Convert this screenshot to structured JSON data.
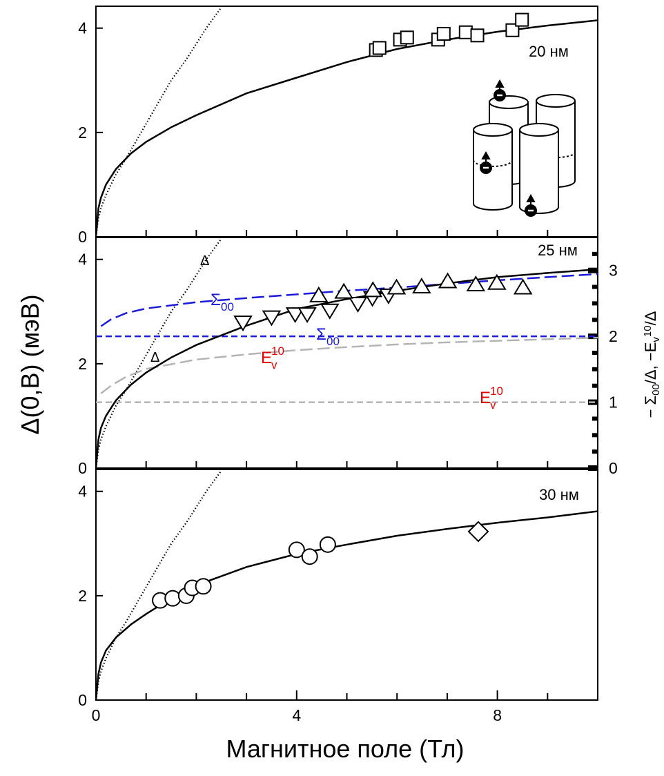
{
  "chart_data": [
    {
      "type": "line",
      "panel_label": "20 нм",
      "xlim": [
        0,
        10
      ],
      "xminor": [
        1,
        2,
        3,
        4,
        5,
        6,
        7,
        8,
        9
      ],
      "ylim": [
        0,
        4.42
      ],
      "yticks": [
        0,
        2,
        4
      ],
      "series": [
        {
          "style": "dotted",
          "color": "#000000",
          "x": [
            0,
            0.05,
            0.1,
            0.2,
            0.4,
            0.6,
            0.9,
            1.2,
            1.5,
            1.8,
            2.2,
            2.5
          ],
          "values": [
            0,
            0.35,
            0.55,
            0.8,
            1.2,
            1.5,
            2.0,
            2.5,
            3.0,
            3.4,
            4.0,
            4.4
          ]
        },
        {
          "style": "solid",
          "color": "#000000",
          "x": [
            0,
            0.05,
            0.1,
            0.2,
            0.4,
            0.7,
            1,
            1.5,
            2,
            3,
            4,
            5,
            6,
            7,
            8,
            9,
            10
          ],
          "values": [
            0,
            0.55,
            0.75,
            1.0,
            1.3,
            1.6,
            1.82,
            2.1,
            2.33,
            2.75,
            3.05,
            3.35,
            3.6,
            3.78,
            3.93,
            4.05,
            4.15
          ]
        },
        {
          "marker": "square",
          "color": "#000000",
          "x": [
            5.58,
            5.65,
            6.06,
            6.2,
            6.82,
            6.93,
            7.37,
            7.6,
            8.3,
            8.49
          ],
          "values": [
            3.58,
            3.62,
            3.78,
            3.82,
            3.78,
            3.89,
            3.92,
            3.86,
            3.96,
            4.16
          ]
        }
      ]
    },
    {
      "type": "line",
      "panel_label": "25 нм",
      "ylabel": "Δ(0,B) (мэВ)",
      "xlim": [
        0,
        10
      ],
      "xminor": [
        1,
        2,
        3,
        4,
        5,
        6,
        7,
        8,
        9
      ],
      "ylim": [
        0,
        4.42
      ],
      "yticks": [
        0,
        2,
        4
      ],
      "y2lim": [
        0,
        3.5
      ],
      "y2ticks": [
        0,
        1,
        2,
        3
      ],
      "y2minor": [
        0.25,
        0.5,
        0.75,
        1.25,
        1.5,
        1.75,
        2.25,
        2.5,
        2.75,
        3.25
      ],
      "y2label": [
        {
          "text": "− Σ"
        },
        {
          "sub": "00"
        },
        {
          "text": "/Δ, −E"
        },
        {
          "sub": "v"
        },
        {
          "sup": "10"
        },
        {
          "text": "/Δ"
        }
      ],
      "series": [
        {
          "style": "dotted",
          "color": "#000000",
          "x": [
            0,
            0.05,
            0.1,
            0.2,
            0.4,
            0.6,
            0.9,
            1.2,
            1.5,
            1.8,
            2.2,
            2.5
          ],
          "values": [
            0,
            0.35,
            0.55,
            0.8,
            1.2,
            1.5,
            2.0,
            2.5,
            3.0,
            3.4,
            4.0,
            4.4
          ]
        },
        {
          "style": "longdash",
          "color": "#1a1ad8",
          "x": [
            0.1,
            0.3,
            0.6,
            1,
            2,
            3,
            4,
            5,
            6,
            7,
            8,
            9,
            10
          ],
          "values": [
            2.72,
            2.85,
            2.97,
            3.06,
            3.18,
            3.26,
            3.33,
            3.4,
            3.46,
            3.53,
            3.6,
            3.66,
            3.72
          ]
        },
        {
          "style": "longdash",
          "color": "#b4b4b4",
          "x": [
            0.1,
            0.3,
            0.6,
            1,
            2,
            3,
            4,
            5,
            6,
            7,
            8,
            9,
            10
          ],
          "values": [
            1.43,
            1.58,
            1.75,
            1.9,
            2.08,
            2.18,
            2.26,
            2.32,
            2.37,
            2.41,
            2.44,
            2.47,
            2.5
          ]
        },
        {
          "style": "shortdash",
          "color": "#1a1ad8",
          "axis": "y2",
          "x": [
            0,
            10
          ],
          "values": [
            2,
            2
          ]
        },
        {
          "style": "shortdash",
          "color": "#b4b4b4",
          "axis": "y2",
          "x": [
            0,
            10
          ],
          "values": [
            1,
            1
          ]
        },
        {
          "style": "solid",
          "color": "#000000",
          "x": [
            0,
            0.05,
            0.1,
            0.2,
            0.4,
            0.7,
            1,
            1.5,
            2,
            3,
            4,
            5,
            6,
            7,
            8,
            9,
            10
          ],
          "values": [
            0,
            0.55,
            0.77,
            1.0,
            1.3,
            1.6,
            1.83,
            2.12,
            2.36,
            2.73,
            3.05,
            3.24,
            3.4,
            3.54,
            3.66,
            3.74,
            3.81
          ]
        },
        {
          "marker": "triangle-down",
          "color": "#000000",
          "x": [
            2.93,
            3.5,
            3.97,
            4.21,
            4.66,
            5.22,
            5.51,
            5.83
          ],
          "values": [
            2.79,
            2.89,
            2.95,
            2.95,
            3.02,
            3.15,
            3.26,
            3.31
          ]
        },
        {
          "marker": "triangle-up",
          "color": "#000000",
          "x": [
            4.44,
            4.94,
            5.52,
            5.99,
            6.49,
            7.01,
            7.57,
            7.99,
            8.51
          ],
          "values": [
            3.31,
            3.38,
            3.41,
            3.46,
            3.48,
            3.58,
            3.52,
            3.55,
            3.46
          ]
        }
      ],
      "annotations": [
        {
          "text": "Δ"
        },
        {
          "text": "Δ"
        },
        {
          "text": "Σ",
          "sub": "00",
          "color": "#1a1ad8"
        },
        {
          "text": "Σ",
          "sub": "00",
          "color": "#1a1ad8"
        },
        {
          "text": "E",
          "sub": "v",
          "sup": "10",
          "color": "#e00000"
        },
        {
          "text": "E",
          "sub": "v",
          "sup": "10",
          "color": "#e00000"
        }
      ]
    },
    {
      "type": "line",
      "panel_label": "30 нм",
      "xlabel": "Магнитное поле (Тл)",
      "xlim": [
        0,
        10
      ],
      "xticks": [
        0,
        4,
        8
      ],
      "xminor": [
        1,
        2,
        3,
        5,
        6,
        7,
        9
      ],
      "ylim": [
        0,
        4.42
      ],
      "yticks": [
        0,
        2,
        4
      ],
      "series": [
        {
          "style": "dotted",
          "color": "#000000",
          "x": [
            0,
            0.05,
            0.1,
            0.2,
            0.4,
            0.6,
            0.9,
            1.2,
            1.5,
            1.8,
            2.2,
            2.5
          ],
          "values": [
            0,
            0.35,
            0.55,
            0.8,
            1.2,
            1.5,
            2.0,
            2.5,
            3.0,
            3.4,
            4.0,
            4.4
          ]
        },
        {
          "style": "solid",
          "color": "#000000",
          "x": [
            0,
            0.05,
            0.1,
            0.2,
            0.4,
            0.7,
            1,
            1.5,
            2,
            3,
            4,
            5,
            6,
            7,
            8,
            9,
            10
          ],
          "values": [
            0,
            0.5,
            0.72,
            0.95,
            1.2,
            1.45,
            1.65,
            1.95,
            2.2,
            2.55,
            2.8,
            2.98,
            3.15,
            3.28,
            3.4,
            3.5,
            3.62
          ]
        },
        {
          "marker": "circle",
          "color": "#000000",
          "x": [
            1.28,
            1.53,
            1.8,
            1.92,
            2.14,
            4.0,
            4.26,
            4.62
          ],
          "values": [
            1.91,
            1.95,
            2.0,
            2.15,
            2.18,
            2.88,
            2.75,
            2.98
          ]
        },
        {
          "marker": "diamond",
          "color": "#000000",
          "x": [
            7.62
          ],
          "values": [
            3.23
          ]
        }
      ]
    }
  ]
}
